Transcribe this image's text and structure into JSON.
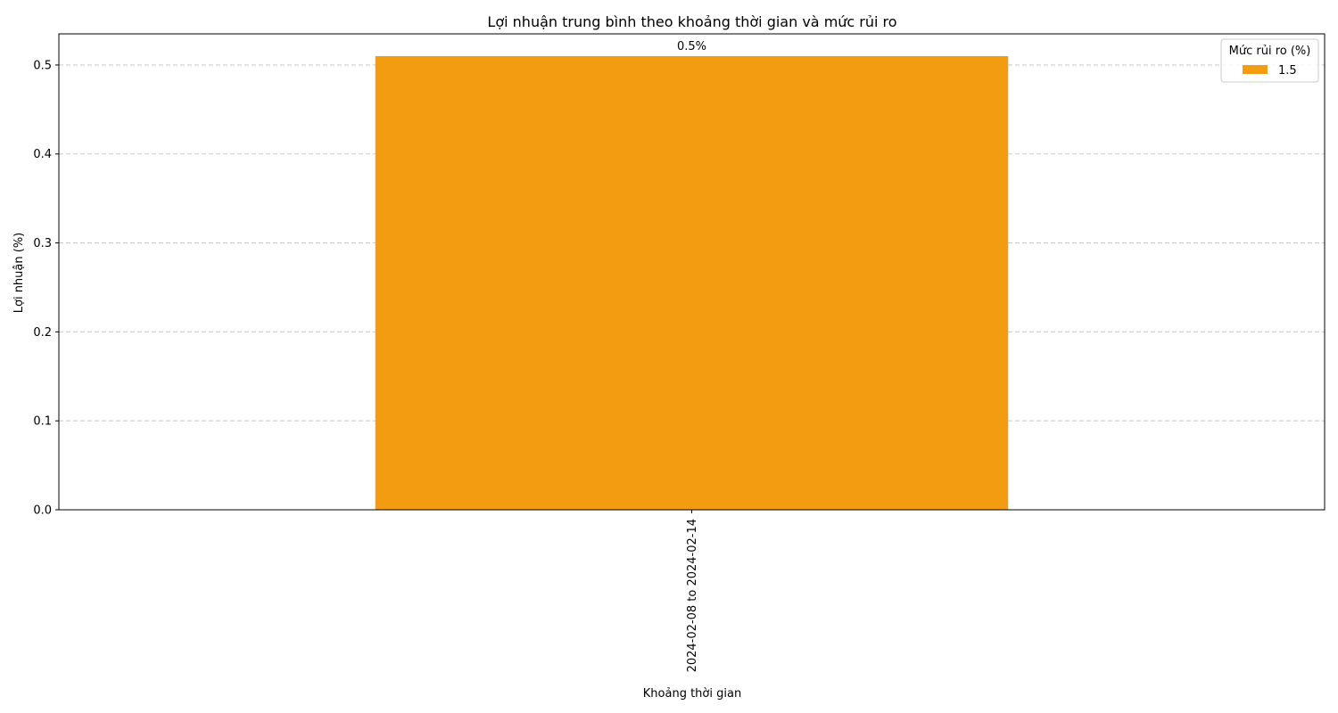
{
  "chart_data": {
    "type": "bar",
    "title": "Lợi nhuận trung bình theo khoảng thời gian và mức rủi ro",
    "xlabel": "Khoảng thời gian",
    "ylabel": "Lợi nhuận (%)",
    "categories": [
      "2024-02-08 to 2024-02-14"
    ],
    "series": [
      {
        "name": "1.5",
        "values": [
          0.51
        ],
        "color": "#f39c12",
        "data_labels": [
          "0.5%"
        ]
      }
    ],
    "ylim": [
      0,
      0.535
    ],
    "yticks": [
      0.0,
      0.1,
      0.2,
      0.3,
      0.4,
      0.5
    ],
    "ytick_labels": [
      "0.0",
      "0.1",
      "0.2",
      "0.3",
      "0.4",
      "0.5"
    ],
    "grid": "y-dashed",
    "legend": {
      "title": "Mức rủi ro (%)",
      "placement": "top-right",
      "entries": [
        "1.5"
      ]
    },
    "xtick_rotation": "vertical"
  }
}
